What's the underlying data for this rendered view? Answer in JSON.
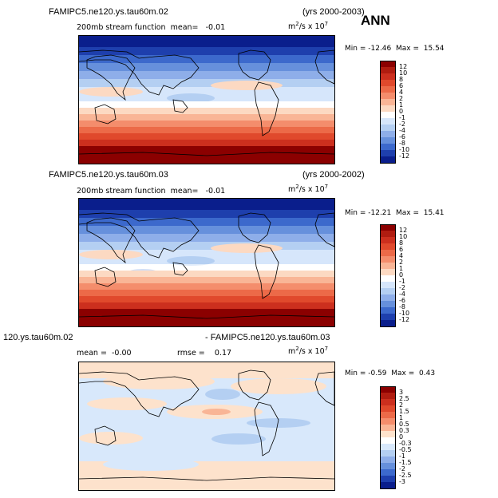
{
  "annotation": "ANN",
  "panels": [
    {
      "case": "FAMIPC5.ne120.ys.tau60m.02",
      "years": "(yrs 2000-2003)",
      "variable": "200mb stream function",
      "mean_label": "mean=",
      "mean_value": "-0.01",
      "units_prefix": "m",
      "units_exp": "2",
      "units_mid": "/s x 10",
      "units_exp2": "7",
      "min_label": "Min =",
      "min_value": "-12.46",
      "max_label": "Max =",
      "max_value": "15.54",
      "colorbar": [
        "12",
        "10",
        "8",
        "6",
        "4",
        "2",
        "1",
        "0",
        "-1",
        "-2",
        "-4",
        "-6",
        "-8",
        "-10",
        "-12"
      ]
    },
    {
      "case": "FAMIPC5.ne120.ys.tau60m.03",
      "years": "(yrs 2000-2002)",
      "variable": "200mb stream function",
      "mean_label": "mean=",
      "mean_value": "-0.01",
      "units_prefix": "m",
      "units_exp": "2",
      "units_mid": "/s x 10",
      "units_exp2": "7",
      "min_label": "Min =",
      "min_value": "-12.21",
      "max_label": "Max =",
      "max_value": "15.41",
      "colorbar": [
        "12",
        "10",
        "8",
        "6",
        "4",
        "2",
        "1",
        "0",
        "-1",
        "-2",
        "-4",
        "-6",
        "-8",
        "-10",
        "-12"
      ]
    },
    {
      "case_left": "120.ys.tau60m.02",
      "case_right": "- FAMIPC5.ne120.ys.tau60m.03",
      "mean_label": "mean =",
      "mean_value": "-0.00",
      "rmse_label": "rmse =",
      "rmse_value": "0.17",
      "units_prefix": "m",
      "units_exp": "2",
      "units_mid": "/s x 10",
      "units_exp2": "7",
      "min_label": "Min =",
      "min_value": "-0.59",
      "max_label": "Max =",
      "max_value": "0.43",
      "colorbar": [
        "3",
        "2.5",
        "2",
        "1.5",
        "1",
        "0.5",
        "0.3",
        "0",
        "-0.3",
        "-0.5",
        "-1",
        "-1.5",
        "-2",
        "-2.5",
        "-3"
      ]
    }
  ],
  "colors": {
    "main_scale": [
      "#8b0000",
      "#b01c10",
      "#cc2f1e",
      "#e0492c",
      "#ec6a48",
      "#f48d6c",
      "#f9b596",
      "#fcd9c2",
      "#ffffff",
      "#d6e6fb",
      "#b4cff2",
      "#8eaee9",
      "#6690dc",
      "#3c69cc",
      "#1e3fad",
      "#0a1e8c"
    ],
    "diff_scale": [
      "#8b0000",
      "#b01c10",
      "#cc2f1e",
      "#e0492c",
      "#ec6a48",
      "#f48d6c",
      "#f9b596",
      "#fde2cc",
      "#ffffff",
      "#d8e8fb",
      "#b4cff2",
      "#8eaee9",
      "#6690dc",
      "#3c69cc",
      "#1e3fad",
      "#0a1e8c"
    ]
  }
}
